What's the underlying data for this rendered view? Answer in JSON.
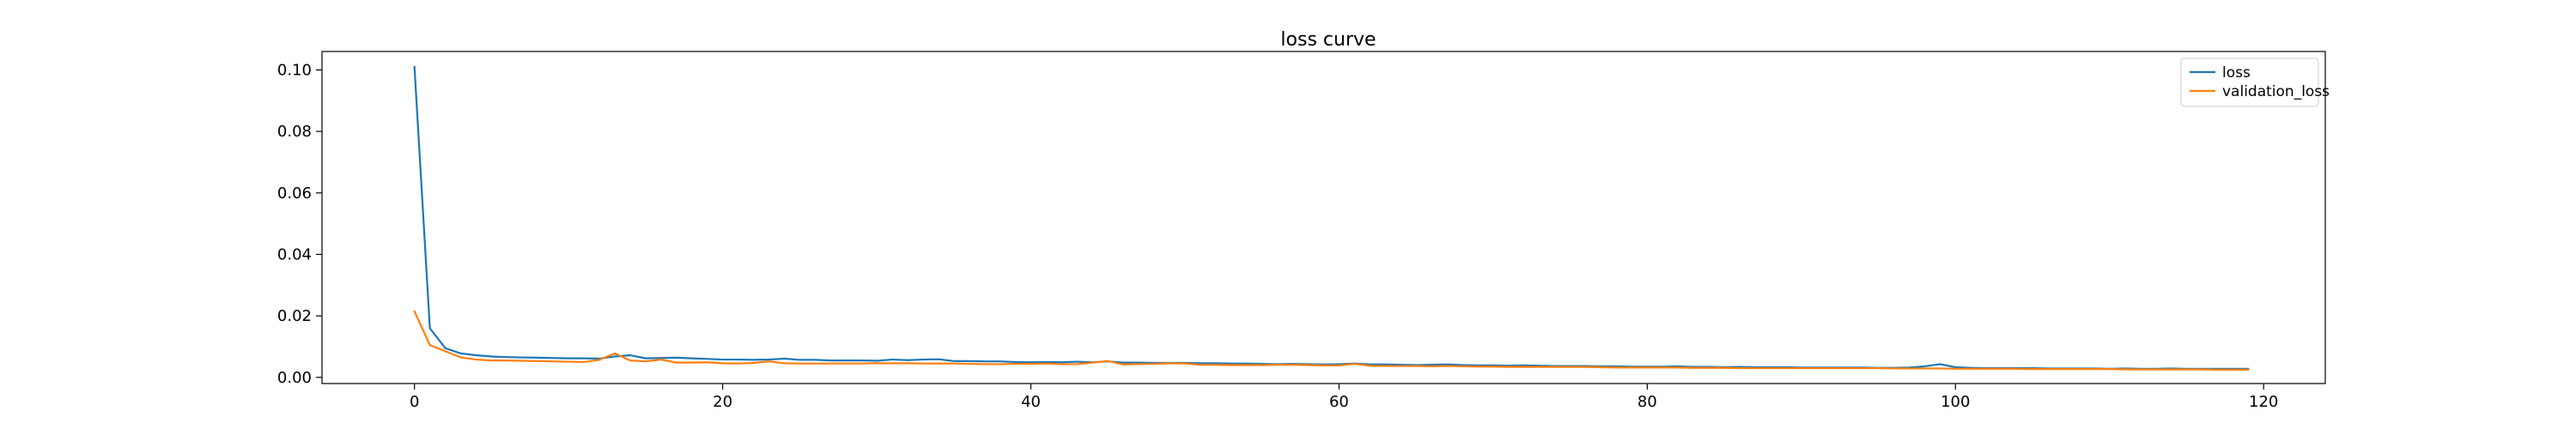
{
  "chart_data": {
    "type": "line",
    "title": "loss curve",
    "xlabel": "",
    "ylabel": "",
    "xlim": [
      -6,
      124
    ],
    "ylim": [
      -0.002,
      0.106
    ],
    "xticks": [
      0,
      20,
      40,
      60,
      80,
      100,
      120
    ],
    "yticks": [
      0.0,
      0.02,
      0.04,
      0.06,
      0.08,
      0.1
    ],
    "ytick_labels": [
      "0.00",
      "0.02",
      "0.04",
      "0.06",
      "0.08",
      "0.10"
    ],
    "grid": false,
    "legend_position": "top-right",
    "series": [
      {
        "name": "loss",
        "color": "#1f77b4",
        "x_start": 0,
        "values": [
          0.101,
          0.016,
          0.0095,
          0.0078,
          0.0072,
          0.0068,
          0.0066,
          0.0065,
          0.0064,
          0.0063,
          0.0062,
          0.0062,
          0.0061,
          0.0068,
          0.0072,
          0.0062,
          0.0063,
          0.0064,
          0.0062,
          0.006,
          0.0058,
          0.0058,
          0.0057,
          0.0058,
          0.0061,
          0.0057,
          0.0057,
          0.0055,
          0.0055,
          0.0055,
          0.0054,
          0.0058,
          0.0056,
          0.0058,
          0.0059,
          0.0053,
          0.0053,
          0.0052,
          0.0052,
          0.005,
          0.0049,
          0.005,
          0.0049,
          0.0051,
          0.0049,
          0.0052,
          0.0048,
          0.0048,
          0.0047,
          0.0047,
          0.0047,
          0.0046,
          0.0046,
          0.0045,
          0.0045,
          0.0044,
          0.0043,
          0.0044,
          0.0043,
          0.0042,
          0.0043,
          0.0045,
          0.0042,
          0.0042,
          0.0041,
          0.004,
          0.0041,
          0.0042,
          0.004,
          0.0039,
          0.0039,
          0.0038,
          0.0039,
          0.0038,
          0.0037,
          0.0037,
          0.0037,
          0.0036,
          0.0036,
          0.0035,
          0.0035,
          0.0035,
          0.0036,
          0.0034,
          0.0034,
          0.0033,
          0.0034,
          0.0033,
          0.0033,
          0.0033,
          0.0032,
          0.0032,
          0.0032,
          0.0032,
          0.0032,
          0.0031,
          0.0031,
          0.0032,
          0.0036,
          0.0043,
          0.0033,
          0.0031,
          0.003,
          0.003,
          0.003,
          0.003,
          0.0029,
          0.0029,
          0.0029,
          0.0029,
          0.0028,
          0.0029,
          0.0028,
          0.0028,
          0.0029,
          0.0028,
          0.0028,
          0.0028,
          0.0028,
          0.0028
        ]
      },
      {
        "name": "validation_loss",
        "color": "#ff7f0e",
        "x_start": 0,
        "values": [
          0.0215,
          0.0105,
          0.0085,
          0.0065,
          0.0058,
          0.0055,
          0.0055,
          0.0054,
          0.0053,
          0.0052,
          0.0051,
          0.005,
          0.0057,
          0.0078,
          0.0055,
          0.0052,
          0.0058,
          0.0048,
          0.0048,
          0.0049,
          0.0046,
          0.0045,
          0.0047,
          0.0052,
          0.0046,
          0.0045,
          0.0045,
          0.0045,
          0.0045,
          0.0045,
          0.0046,
          0.0046,
          0.0046,
          0.0045,
          0.0045,
          0.0045,
          0.0044,
          0.0043,
          0.0043,
          0.0044,
          0.0044,
          0.0045,
          0.0043,
          0.0043,
          0.0048,
          0.0053,
          0.0042,
          0.0043,
          0.0044,
          0.0046,
          0.0045,
          0.0041,
          0.0041,
          0.004,
          0.004,
          0.004,
          0.0041,
          0.0041,
          0.004,
          0.0039,
          0.0039,
          0.0044,
          0.0038,
          0.0037,
          0.0037,
          0.0037,
          0.0036,
          0.0037,
          0.0036,
          0.0035,
          0.0035,
          0.0034,
          0.0034,
          0.0034,
          0.0034,
          0.0034,
          0.0034,
          0.0033,
          0.0032,
          0.0032,
          0.0032,
          0.0032,
          0.0032,
          0.0031,
          0.0031,
          0.0031,
          0.003,
          0.003,
          0.003,
          0.003,
          0.003,
          0.003,
          0.003,
          0.003,
          0.003,
          0.003,
          0.0029,
          0.0029,
          0.0029,
          0.0029,
          0.0028,
          0.0028,
          0.0028,
          0.0028,
          0.0028,
          0.0027,
          0.0027,
          0.0027,
          0.0027,
          0.0027,
          0.0027,
          0.0026,
          0.0026,
          0.0026,
          0.0026,
          0.0026,
          0.0026,
          0.0025,
          0.0025,
          0.0025
        ]
      }
    ]
  }
}
